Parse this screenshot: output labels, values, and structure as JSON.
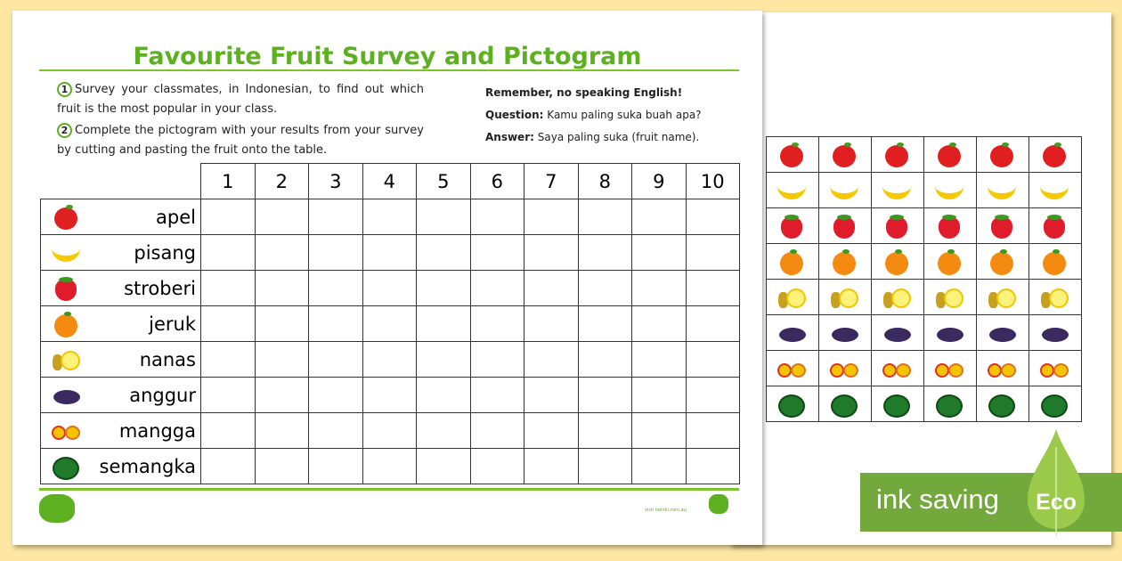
{
  "title": "Favourite Fruit Survey and Pictogram",
  "instructions": [
    {
      "num": "1",
      "text": "Survey your classmates, in Indonesian, to find out which fruit is the most popular in your class."
    },
    {
      "num": "2",
      "text": "Complete the pictogram with your results from your survey by cutting and pasting the fruit onto the table."
    }
  ],
  "reminder": "Remember, no speaking English!",
  "question": {
    "label": "Question:",
    "text": "Kamu paling suka buah apa?"
  },
  "answer": {
    "label": "Answer:",
    "text": "Saya paling suka (fruit name)."
  },
  "columns": [
    "1",
    "2",
    "3",
    "4",
    "5",
    "6",
    "7",
    "8",
    "9",
    "10"
  ],
  "fruits": [
    {
      "name": "apel",
      "icon": "apple-icon"
    },
    {
      "name": "pisang",
      "icon": "banana-icon"
    },
    {
      "name": "stroberi",
      "icon": "strawberry-icon"
    },
    {
      "name": "jeruk",
      "icon": "orange-icon"
    },
    {
      "name": "nanas",
      "icon": "pineapple-icon"
    },
    {
      "name": "anggur",
      "icon": "grapes-icon"
    },
    {
      "name": "mangga",
      "icon": "mango-icon"
    },
    {
      "name": "semangka",
      "icon": "watermelon-icon"
    }
  ],
  "footer": {
    "logo": "twinkl",
    "url": "visit twinkl.com.au"
  },
  "badge": {
    "text": "ink saving",
    "eco": "Eco"
  },
  "colors": {
    "accent": "#5db01f",
    "background": "#fde7a2",
    "eco": "#72a83c"
  }
}
